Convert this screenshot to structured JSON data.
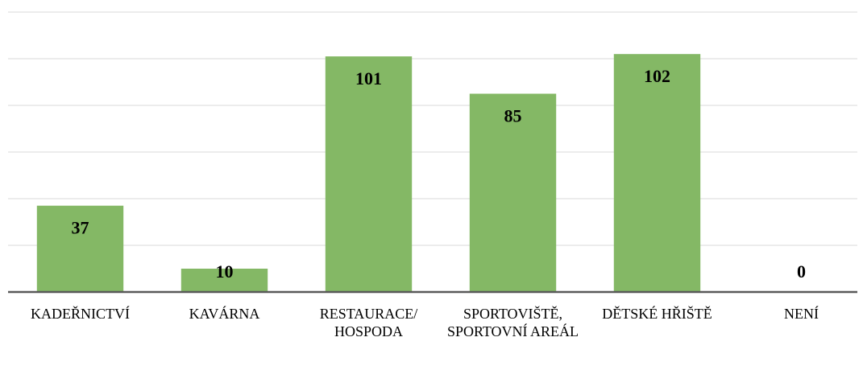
{
  "chart_data": {
    "type": "bar",
    "categories": [
      "KADEŘNICTVÍ",
      "KAVÁRNA",
      "RESTAURACE/ HOSPODA",
      "SPORTOVIŠTĚ, SPORTOVNÍ AREÁL",
      "DĚTSKÉ HŘIŠTĚ",
      "NENÍ"
    ],
    "values": [
      37,
      10,
      101,
      85,
      102,
      0
    ],
    "color": "#84b865",
    "ylim": [
      0,
      120
    ],
    "yticks": [
      0,
      20,
      40,
      60,
      80,
      100,
      120
    ],
    "grid": true
  }
}
